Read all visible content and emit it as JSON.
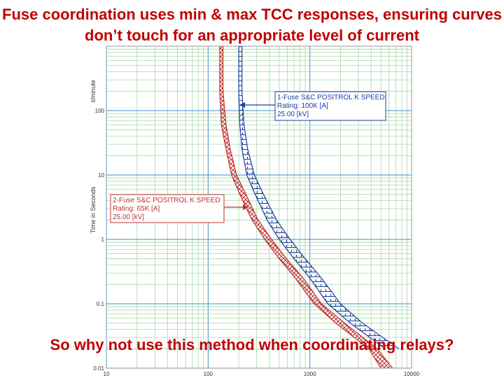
{
  "slide": {
    "title": "Fuse coordination uses min & max TCC responses, ensuring curves don’t touch for an appropriate level of current",
    "question": "So why not use this method when coordinating relays?"
  },
  "chart_data": {
    "type": "line",
    "ylabel": "Time in Seconds",
    "yunit_label": "t/minute",
    "x_scale": "log",
    "y_scale": "log",
    "xlim": [
      10,
      10000
    ],
    "ylim": [
      0.01,
      1000
    ],
    "x_ticks": [
      "10",
      "100",
      "1000",
      "10000"
    ],
    "y_ticks": [
      "0.01",
      "0.1",
      "1",
      "10",
      "100"
    ],
    "grid": true,
    "series": [
      {
        "name": "1-Fuse S&C POSITROL K SPEED",
        "color": "#1f3f9f",
        "lines": [
          "1-Fuse S&C POSITROL K SPEED",
          "Rating: 100K [A]",
          "25.00 [kV]"
        ],
        "min_curve": [
          [
            200,
            1000
          ],
          [
            200,
            200
          ],
          [
            205,
            60
          ],
          [
            215,
            25
          ],
          [
            240,
            10
          ],
          [
            290,
            5
          ],
          [
            380,
            2
          ],
          [
            500,
            1
          ],
          [
            700,
            0.5
          ],
          [
            1000,
            0.25
          ],
          [
            1500,
            0.1
          ],
          [
            2500,
            0.05
          ],
          [
            5500,
            0.02
          ]
        ],
        "max_curve": [
          [
            215,
            1000
          ],
          [
            215,
            200
          ],
          [
            225,
            60
          ],
          [
            245,
            25
          ],
          [
            285,
            10
          ],
          [
            350,
            5
          ],
          [
            470,
            2
          ],
          [
            640,
            1
          ],
          [
            900,
            0.5
          ],
          [
            1300,
            0.25
          ],
          [
            2000,
            0.1
          ],
          [
            3300,
            0.05
          ],
          [
            7500,
            0.02
          ]
        ]
      },
      {
        "name": "2-Fuse S&C POSITROL K SPEED",
        "color": "#c03030",
        "lines": [
          "2-Fuse S&C POSITROL K SPEED",
          "Rating: 65K [A]",
          "25.00 [kV]"
        ],
        "min_curve": [
          [
            130,
            1000
          ],
          [
            130,
            200
          ],
          [
            135,
            60
          ],
          [
            150,
            25
          ],
          [
            170,
            10
          ],
          [
            205,
            5
          ],
          [
            270,
            2
          ],
          [
            360,
            1
          ],
          [
            500,
            0.5
          ],
          [
            720,
            0.25
          ],
          [
            1100,
            0.1
          ],
          [
            1800,
            0.05
          ],
          [
            3800,
            0.02
          ],
          [
            5000,
            0.01
          ]
        ],
        "max_curve": [
          [
            140,
            1000
          ],
          [
            140,
            200
          ],
          [
            150,
            60
          ],
          [
            165,
            25
          ],
          [
            190,
            10
          ],
          [
            235,
            5
          ],
          [
            310,
            2
          ],
          [
            420,
            1
          ],
          [
            590,
            0.5
          ],
          [
            860,
            0.25
          ],
          [
            1300,
            0.1
          ],
          [
            2200,
            0.05
          ],
          [
            4600,
            0.02
          ],
          [
            6500,
            0.01
          ]
        ]
      }
    ]
  }
}
